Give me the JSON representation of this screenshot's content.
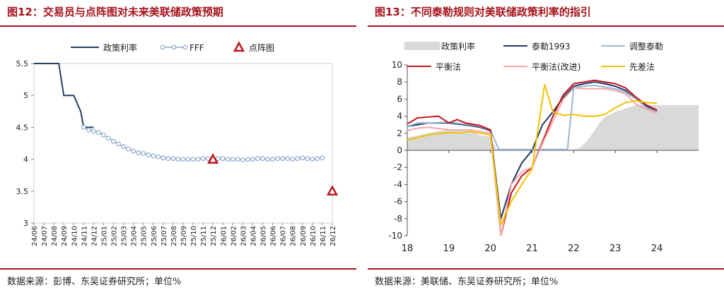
{
  "left": {
    "title": "图12：交易员与点阵图对未来美联储政策预期",
    "source": "数据来源：彭博、东吴证券研究所；单位%"
  },
  "right": {
    "title": "图13：不同泰勒规则对美联储政策利率的指引",
    "source": "数据来源：美联储、东吴证券研究所；单位%"
  },
  "colors": {
    "brand": "#a5141c",
    "policy_rate_line": "#243f60",
    "fff": "#8ea9cc",
    "dot_plot": "#c0141c",
    "taylor1993": "#1f3864",
    "adjusted_taylor": "#9bb5d6",
    "balanced": "#c0141c",
    "balanced_improved": "#f4a6a6",
    "first_difference": "#f2c200",
    "area": "#d9d9d9"
  },
  "chart_data": [
    {
      "type": "line",
      "x": [
        "24/06",
        "24/07",
        "24/08",
        "24/09",
        "24/10",
        "24/11",
        "24/12",
        "25/01",
        "25/02",
        "25/03",
        "25/04",
        "25/05",
        "25/06",
        "25/07",
        "25/08",
        "25/09",
        "25/10",
        "25/11",
        "25/12",
        "26/01",
        "26/02",
        "26/03",
        "26/04",
        "26/05",
        "26/06",
        "26/07",
        "26/08",
        "26/09",
        "26/10",
        "26/11",
        "26/12"
      ],
      "series": [
        {
          "name": "政策利率",
          "x": [
            0,
            1,
            2,
            2.5,
            3,
            3.5,
            4,
            4.7,
            5,
            6
          ],
          "values": [
            5.5,
            5.5,
            5.5,
            5.5,
            5.0,
            5.0,
            5.0,
            4.75,
            4.5,
            4.5
          ]
        },
        {
          "name": "FFF",
          "x": [
            5,
            5.5,
            6,
            6.5,
            7,
            7.5,
            8,
            8.5,
            9,
            9.5,
            10,
            10.5,
            11,
            11.5,
            12,
            12.5,
            13,
            13.5,
            14,
            14.5,
            15,
            15.5,
            16,
            16.5,
            17,
            17.5,
            18,
            18.5,
            19,
            19.5,
            20,
            20.5,
            21,
            21.5,
            22,
            22.5,
            23,
            23.5,
            24,
            24.5,
            25,
            25.5,
            26,
            26.5,
            27,
            27.5,
            28,
            28.5,
            29
          ],
          "values": [
            4.5,
            4.46,
            4.44,
            4.42,
            4.38,
            4.33,
            4.28,
            4.24,
            4.2,
            4.16,
            4.13,
            4.1,
            4.09,
            4.07,
            4.05,
            4.04,
            4.02,
            4.01,
            4.01,
            4.0,
            4.0,
            4.0,
            4.0,
            4.0,
            4.01,
            4.01,
            4.01,
            4.01,
            4.01,
            4.0,
            4.0,
            4.0,
            3.99,
            4.0,
            4.0,
            4.01,
            4.01,
            4.0,
            4.0,
            4.01,
            4.01,
            4.01,
            4.0,
            4.01,
            4.02,
            4.01,
            4.0,
            4.01,
            4.02
          ]
        },
        {
          "name": "点阵图",
          "x": [
            18,
            30
          ],
          "values": [
            4.0,
            3.5
          ]
        }
      ],
      "ylim": [
        3,
        5.5
      ],
      "yticks": [
        "3",
        "3.5",
        "4",
        "4.5",
        "5",
        "5.5"
      ],
      "grid": false,
      "legend": "top"
    },
    {
      "type": "line",
      "x_ticks": [
        "18",
        "19",
        "20",
        "21",
        "22",
        "23",
        "24"
      ],
      "xlim": [
        2018,
        2025
      ],
      "ylim": [
        -10,
        10
      ],
      "yticks": [
        "-10",
        "-8",
        "-6",
        "-4",
        "-2",
        "0",
        "2",
        "4",
        "6",
        "8",
        "10"
      ],
      "grid": false,
      "legend": "top",
      "series": [
        {
          "name": "政策利率",
          "kind": "area",
          "x": [
            2018,
            2018.25,
            2018.5,
            2018.75,
            2019,
            2019.25,
            2019.5,
            2019.75,
            2020,
            2020.15,
            2020.2,
            2020.5,
            2021,
            2021.5,
            2022,
            2022.15,
            2022.3,
            2022.4,
            2022.5,
            2022.6,
            2022.75,
            2023,
            2023.25,
            2023.5,
            2023.75,
            2024,
            2024.5,
            2024.75,
            2025
          ],
          "values": [
            1.5,
            1.75,
            2.0,
            2.25,
            2.4,
            2.4,
            2.3,
            1.75,
            1.6,
            0.1,
            0.1,
            0.1,
            0.1,
            0.1,
            0.1,
            0.3,
            1.0,
            1.6,
            2.3,
            3.1,
            3.9,
            4.5,
            4.9,
            5.3,
            5.3,
            5.3,
            5.3,
            5.3,
            5.3
          ]
        },
        {
          "name": "泰勒1993",
          "x": [
            2018,
            2018.5,
            2019,
            2019.5,
            2019.75,
            2020,
            2020.1,
            2020.25,
            2020.5,
            2020.75,
            2021,
            2021.25,
            2021.5,
            2021.75,
            2022,
            2022.25,
            2022.5,
            2022.75,
            2023,
            2023.25,
            2023.5,
            2023.75,
            2024
          ],
          "values": [
            2.8,
            3.2,
            3.2,
            2.9,
            2.7,
            2.3,
            -2,
            -8,
            -4,
            -1.5,
            0,
            3,
            4.5,
            6.2,
            7.5,
            7.8,
            8.0,
            7.8,
            7.5,
            7.0,
            6.0,
            5.2,
            4.6
          ]
        },
        {
          "name": "调整泰勒",
          "x": [
            2018,
            2018.25,
            2018.5,
            2019,
            2019.5,
            2019.75,
            2020,
            2020.2,
            2020.3,
            2021,
            2021.5,
            2021.85,
            2022,
            2022.25,
            2022.5,
            2022.75,
            2023,
            2023.25,
            2023.5,
            2023.75,
            2024
          ],
          "values": [
            2.8,
            3.2,
            3.2,
            3.3,
            3.0,
            2.8,
            2.4,
            0.1,
            0.1,
            0.1,
            0.1,
            0.1,
            7.3,
            7.5,
            7.6,
            7.4,
            7.2,
            6.8,
            6.0,
            5.0,
            4.5
          ]
        },
        {
          "name": "平衡法",
          "x": [
            2018,
            2018.25,
            2018.5,
            2018.75,
            2019,
            2019.2,
            2019.4,
            2019.75,
            2020,
            2020.25,
            2020.5,
            2020.75,
            2021,
            2021.25,
            2021.5,
            2021.75,
            2022,
            2022.25,
            2022.5,
            2022.75,
            2023,
            2023.25,
            2023.5,
            2023.75,
            2024
          ],
          "values": [
            3.1,
            3.8,
            3.9,
            4.0,
            3.2,
            3.6,
            3.2,
            2.9,
            2.4,
            -10,
            -5,
            -3,
            -2,
            1,
            4,
            6.5,
            7.8,
            8.0,
            8.2,
            8.0,
            7.8,
            7.3,
            6.2,
            5.3,
            4.7
          ]
        },
        {
          "name": "平衡法(改进)",
          "x": [
            2018,
            2018.25,
            2018.5,
            2019,
            2019.5,
            2019.75,
            2020,
            2020.25,
            2020.5,
            2020.75,
            2021,
            2021.25,
            2021.5,
            2021.75,
            2022,
            2022.25,
            2022.5,
            2022.75,
            2023,
            2023.25,
            2023.5,
            2023.75,
            2024
          ],
          "values": [
            2.3,
            2.6,
            2.7,
            2.4,
            2.4,
            2.2,
            2.0,
            -10,
            -4,
            -2.5,
            -2,
            0.8,
            3.4,
            6.0,
            7.3,
            7.2,
            7.2,
            7.2,
            7.0,
            6.6,
            5.4,
            4.8,
            4.4
          ]
        },
        {
          "name": "先差法",
          "x": [
            2018,
            2018.25,
            2018.5,
            2019,
            2019.25,
            2019.5,
            2019.75,
            2020,
            2020.25,
            2020.5,
            2020.75,
            2021,
            2021.3,
            2021.5,
            2021.75,
            2022,
            2022.25,
            2022.5,
            2022.75,
            2023,
            2023.25,
            2023.5,
            2023.75,
            2024
          ],
          "values": [
            1.2,
            1.5,
            1.8,
            2.1,
            2.0,
            2.2,
            2.0,
            1.8,
            -8.7,
            -6,
            -4,
            -2.2,
            7.7,
            4.5,
            4.1,
            4.2,
            4.0,
            4.0,
            4.2,
            5.0,
            5.6,
            5.8,
            5.6,
            5.5
          ]
        }
      ]
    }
  ]
}
